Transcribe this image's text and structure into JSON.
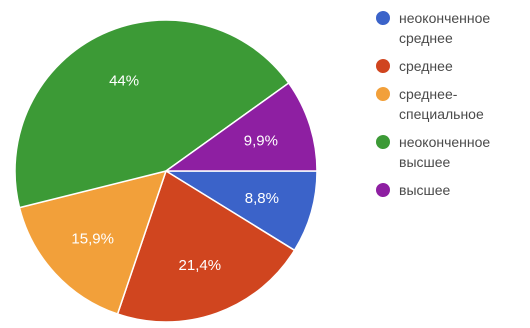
{
  "chart_data": {
    "type": "pie",
    "slices": [
      {
        "label": "неоконченное\nсреднее",
        "value": 8.8,
        "value_label": "8,8%",
        "color": "#3b63c9"
      },
      {
        "label": "среднее",
        "value": 21.4,
        "value_label": "21,4%",
        "color": "#d0451f"
      },
      {
        "label": "среднее-\nспециальное",
        "value": 15.9,
        "value_label": "15,9%",
        "color": "#f2a03a"
      },
      {
        "label": "неоконченное\nвысшее",
        "value": 44,
        "value_label": "44%",
        "color": "#3c9a36"
      },
      {
        "label": "высшее",
        "value": 9.9,
        "value_label": "9,9%",
        "color": "#8e1fa2"
      }
    ],
    "legend_position": "right"
  }
}
